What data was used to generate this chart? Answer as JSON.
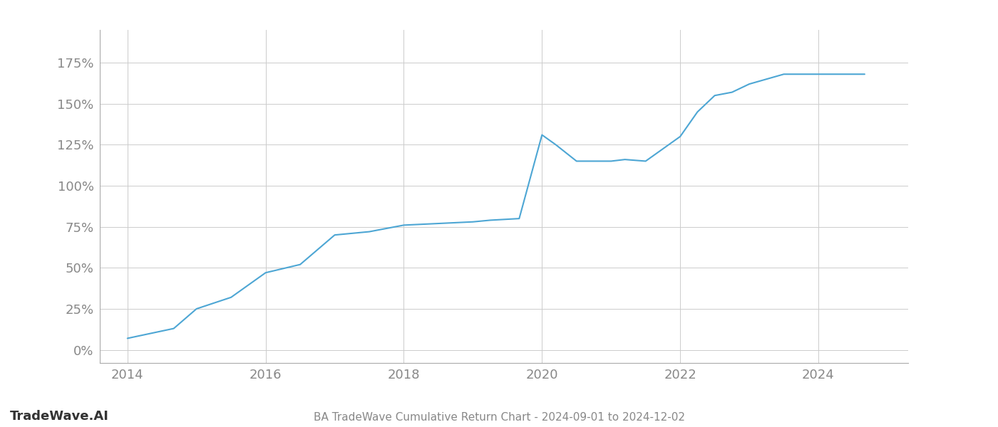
{
  "title": "BA TradeWave Cumulative Return Chart - 2024-09-01 to 2024-12-02",
  "line_color": "#4da6d4",
  "background_color": "#ffffff",
  "grid_color": "#cccccc",
  "text_color": "#888888",
  "watermark": "TradeWave.AI",
  "watermark_color": "#333333",
  "x_years": [
    2014.0,
    2014.67,
    2015.0,
    2015.5,
    2016.0,
    2016.5,
    2017.0,
    2017.5,
    2018.0,
    2018.5,
    2019.0,
    2019.25,
    2019.67,
    2020.0,
    2020.2,
    2020.5,
    2021.0,
    2021.2,
    2021.5,
    2022.0,
    2022.25,
    2022.5,
    2022.75,
    2023.0,
    2023.25,
    2023.5,
    2024.0,
    2024.67
  ],
  "y_values": [
    7,
    13,
    25,
    32,
    47,
    52,
    70,
    72,
    76,
    77,
    78,
    79,
    80,
    131,
    125,
    115,
    115,
    116,
    115,
    130,
    145,
    155,
    157,
    162,
    165,
    168,
    168,
    168
  ],
  "yticks": [
    0,
    25,
    50,
    75,
    100,
    125,
    150,
    175
  ],
  "ytick_labels": [
    "0%",
    "25%",
    "50%",
    "75%",
    "100%",
    "125%",
    "150%",
    "175%"
  ],
  "xticks": [
    2014,
    2016,
    2018,
    2020,
    2022,
    2024
  ],
  "xlim": [
    2013.6,
    2025.3
  ],
  "ylim": [
    -8,
    195
  ],
  "line_width": 1.5,
  "title_fontsize": 11,
  "tick_fontsize": 13,
  "watermark_fontsize": 13
}
